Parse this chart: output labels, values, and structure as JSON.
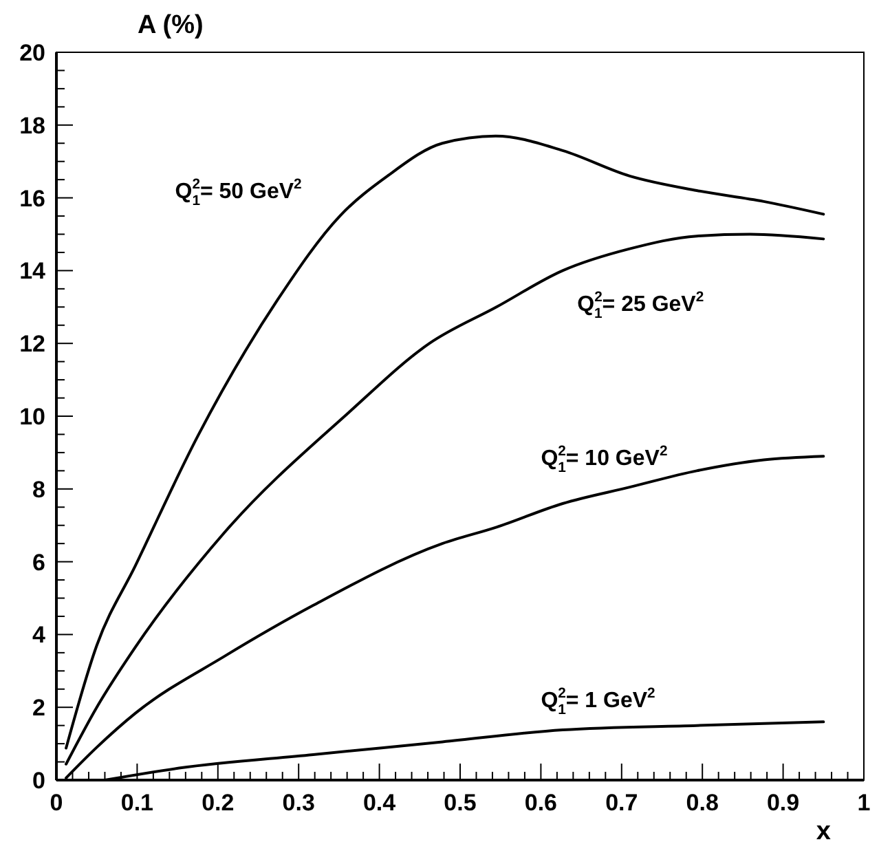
{
  "chart_data": {
    "type": "line",
    "title": "A (%)",
    "xlabel": "x",
    "xlim": [
      0,
      1
    ],
    "ylim": [
      0,
      20
    ],
    "xticks": [
      0,
      {
        "value": 0.02,
        "label": null
      },
      {
        "value": 0.04,
        "label": null
      },
      {
        "value": 0.06,
        "label": null
      },
      {
        "value": 0.08,
        "label": null
      },
      0.1,
      {
        "value": 0.12,
        "label": null
      },
      {
        "value": 0.14,
        "label": null
      },
      {
        "value": 0.16,
        "label": null
      },
      {
        "value": 0.18,
        "label": null
      },
      0.2,
      {
        "value": 0.22,
        "label": null
      },
      {
        "value": 0.24,
        "label": null
      },
      {
        "value": 0.26,
        "label": null
      },
      {
        "value": 0.28,
        "label": null
      },
      0.3,
      {
        "value": 0.32,
        "label": null
      },
      {
        "value": 0.34,
        "label": null
      },
      {
        "value": 0.36,
        "label": null
      },
      {
        "value": 0.38,
        "label": null
      },
      0.4,
      {
        "value": 0.42,
        "label": null
      },
      {
        "value": 0.44,
        "label": null
      },
      {
        "value": 0.46,
        "label": null
      },
      {
        "value": 0.48,
        "label": null
      },
      0.5,
      {
        "value": 0.52,
        "label": null
      },
      {
        "value": 0.54,
        "label": null
      },
      {
        "value": 0.56,
        "label": null
      },
      {
        "value": 0.58,
        "label": null
      },
      0.6,
      {
        "value": 0.62,
        "label": null
      },
      {
        "value": 0.64,
        "label": null
      },
      {
        "value": 0.66,
        "label": null
      },
      {
        "value": 0.68,
        "label": null
      },
      0.7,
      {
        "value": 0.72,
        "label": null
      },
      {
        "value": 0.74,
        "label": null
      },
      {
        "value": 0.76,
        "label": null
      },
      {
        "value": 0.78,
        "label": null
      },
      0.8,
      {
        "value": 0.82,
        "label": null
      },
      {
        "value": 0.84,
        "label": null
      },
      {
        "value": 0.86,
        "label": null
      },
      {
        "value": 0.88,
        "label": null
      },
      0.9,
      {
        "value": 0.92,
        "label": null
      },
      {
        "value": 0.94,
        "label": null
      },
      {
        "value": 0.96,
        "label": null
      },
      {
        "value": 0.98,
        "label": null
      },
      1
    ],
    "yticks": [
      0,
      {
        "value": 0.5,
        "label": null
      },
      {
        "value": 1,
        "label": null
      },
      {
        "value": 1.5,
        "label": null
      },
      2,
      {
        "value": 2.5,
        "label": null
      },
      {
        "value": 3,
        "label": null
      },
      {
        "value": 3.5,
        "label": null
      },
      4,
      {
        "value": 4.5,
        "label": null
      },
      {
        "value": 5,
        "label": null
      },
      {
        "value": 5.5,
        "label": null
      },
      6,
      {
        "value": 6.5,
        "label": null
      },
      {
        "value": 7,
        "label": null
      },
      {
        "value": 7.5,
        "label": null
      },
      8,
      {
        "value": 8.5,
        "label": null
      },
      {
        "value": 9,
        "label": null
      },
      {
        "value": 9.5,
        "label": null
      },
      10,
      {
        "value": 10.5,
        "label": null
      },
      {
        "value": 11,
        "label": null
      },
      {
        "value": 11.5,
        "label": null
      },
      12,
      {
        "value": 12.5,
        "label": null
      },
      {
        "value": 13,
        "label": null
      },
      {
        "value": 13.5,
        "label": null
      },
      14,
      {
        "value": 14.5,
        "label": null
      },
      {
        "value": 15,
        "label": null
      },
      {
        "value": 15.5,
        "label": null
      },
      16,
      {
        "value": 16.5,
        "label": null
      },
      {
        "value": 17,
        "label": null
      },
      {
        "value": 17.5,
        "label": null
      },
      18,
      {
        "value": 18.5,
        "label": null
      },
      {
        "value": 19,
        "label": null
      },
      {
        "value": 19.5,
        "label": null
      },
      20
    ],
    "series": [
      {
        "name": "Q$^{2}$$_{1}$= 50 GeV$^{2}$",
        "color": "#000000",
        "x": [
          0.012,
          0.05,
          0.098,
          0.175,
          0.274,
          0.351,
          0.41,
          0.478,
          0.544,
          0.627,
          0.71,
          0.793,
          0.876,
          0.95
        ],
        "values": [
          0.88,
          3.7,
          5.9,
          9.45,
          13.2,
          15.5,
          16.6,
          17.5,
          17.7,
          17.3,
          16.6,
          16.2,
          15.9,
          15.55
        ]
      },
      {
        "name": "Q$^{2}$$_{1}$= 25 GeV$^{2}$",
        "color": "#000000",
        "x": [
          0.012,
          0.05,
          0.098,
          0.208,
          0.362,
          0.462,
          0.545,
          0.627,
          0.71,
          0.793,
          0.859,
          0.95
        ],
        "values": [
          0.44,
          2.0,
          3.66,
          6.8,
          10.1,
          12.0,
          13.0,
          14.0,
          14.6,
          14.95,
          15.0,
          14.87
        ]
      },
      {
        "name": "Q$^{2}$$_{1}$= 10 GeV$^{2}$",
        "color": "#000000",
        "x": [
          0.012,
          0.05,
          0.098,
          0.208,
          0.318,
          0.478,
          0.545,
          0.627,
          0.71,
          0.793,
          0.876,
          0.95
        ],
        "values": [
          0.06,
          0.9,
          1.84,
          3.4,
          4.8,
          6.5,
          6.95,
          7.6,
          8.05,
          8.5,
          8.8,
          8.9
        ]
      },
      {
        "name": "Q$^{2}$$_{1}$= 1 GeV$^{2}$",
        "color": "#000000",
        "x": [
          0.06,
          0.152,
          0.318,
          0.478,
          0.627,
          0.793,
          0.95
        ],
        "values": [
          0.0,
          0.33,
          0.7,
          1.05,
          1.38,
          1.5,
          1.6
        ]
      }
    ]
  }
}
